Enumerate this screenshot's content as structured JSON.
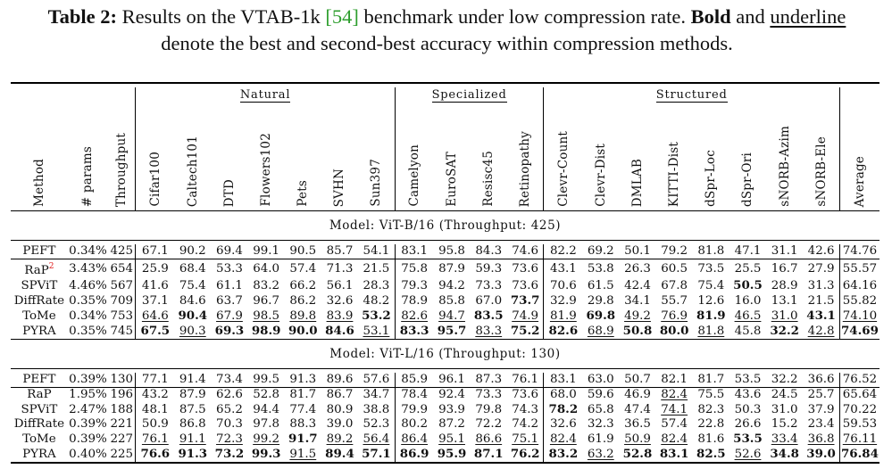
{
  "caption": {
    "label": "Table 2:",
    "text_a": " Results on the VTAB-1k ",
    "ref": "[54]",
    "text_b": " benchmark under low compression rate. ",
    "bold_word": "Bold",
    "text_c": " and ",
    "underline_word": "underline",
    "text_d": " denote the best and second-best accuracy within compression methods."
  },
  "groups": {
    "natural": "Natural",
    "specialized": "Specialized",
    "structured": "Structured"
  },
  "columns": [
    "Method",
    "# params",
    "Throughput",
    "Cifar100",
    "Caltech101",
    "DTD",
    "Flowers102",
    "Pets",
    "SVHN",
    "Sun397",
    "Camelyon",
    "EuroSAT",
    "Resisc45",
    "Retinopathy",
    "Clevr-Count",
    "Clevr-Dist",
    "DMLAB",
    "KITTI-Dist",
    "dSpr-Loc",
    "dSpr-Ori",
    "sNORB-Azim",
    "sNORB-Ele",
    "Average"
  ],
  "sections": [
    {
      "title": "Model: ViT-B/16 (Throughput: 425)",
      "rows": [
        {
          "method": "PEFT",
          "sup": "",
          "cells": [
            "0.34%",
            "425",
            "67.1",
            "90.2",
            "69.4",
            "99.1",
            "90.5",
            "85.7",
            "54.1",
            "83.1",
            "95.8",
            "84.3",
            "74.6",
            "82.2",
            "69.2",
            "50.1",
            "79.2",
            "81.8",
            "47.1",
            "31.1",
            "42.6",
            "74.76"
          ],
          "fmt": []
        },
        {
          "method": "RaP",
          "sup": "2",
          "cells": [
            "3.43%",
            "654",
            "25.9",
            "68.4",
            "53.3",
            "64.0",
            "57.4",
            "71.3",
            "21.5",
            "75.8",
            "87.9",
            "59.3",
            "73.6",
            "43.1",
            "53.8",
            "26.3",
            "60.5",
            "73.5",
            "25.5",
            "16.7",
            "27.9",
            "55.57"
          ],
          "fmt": []
        },
        {
          "method": "SPViT",
          "sup": "",
          "cells": [
            "4.46%",
            "567",
            "41.6",
            "75.4",
            "61.1",
            "83.2",
            "66.2",
            "56.1",
            "28.3",
            "79.3",
            "94.2",
            "73.3",
            "73.6",
            "70.6",
            "61.5",
            "42.4",
            "67.8",
            "75.4",
            "50.5",
            "28.9",
            "31.3",
            "64.16"
          ],
          "fmt": [
            "",
            "",
            "",
            "",
            "",
            "",
            "",
            "",
            "",
            "",
            "",
            "",
            "",
            "",
            "",
            "",
            "",
            "",
            "b",
            "",
            "",
            ""
          ]
        },
        {
          "method": "DiffRate",
          "sup": "",
          "cells": [
            "0.35%",
            "709",
            "37.1",
            "84.6",
            "63.7",
            "96.7",
            "86.2",
            "32.6",
            "48.2",
            "78.9",
            "85.8",
            "67.0",
            "73.7",
            "32.9",
            "29.8",
            "34.1",
            "55.7",
            "12.6",
            "16.0",
            "13.1",
            "21.5",
            "55.82"
          ],
          "fmt": [
            "",
            "",
            "",
            "",
            "",
            "",
            "",
            "",
            "",
            "",
            "",
            "",
            "b",
            "",
            "",
            "",
            "",
            "",
            "",
            "",
            "",
            ""
          ]
        },
        {
          "method": "ToMe",
          "sup": "",
          "cells": [
            "0.34%",
            "753",
            "64.6",
            "90.4",
            "67.9",
            "98.5",
            "89.8",
            "83.9",
            "53.2",
            "82.6",
            "94.7",
            "83.5",
            "74.9",
            "81.9",
            "69.8",
            "49.2",
            "76.9",
            "81.9",
            "46.5",
            "31.0",
            "43.1",
            "74.10"
          ],
          "fmt": [
            "",
            "",
            "u",
            "b",
            "u",
            "u",
            "u",
            "u",
            "b",
            "u",
            "u",
            "b",
            "u",
            "u",
            "b",
            "u",
            "u",
            "b",
            "u",
            "u",
            "b",
            "u"
          ]
        },
        {
          "method": "PYRA",
          "sup": "",
          "cells": [
            "0.35%",
            "745",
            "67.5",
            "90.3",
            "69.3",
            "98.9",
            "90.0",
            "84.6",
            "53.1",
            "83.3",
            "95.7",
            "83.3",
            "75.2",
            "82.6",
            "68.9",
            "50.8",
            "80.0",
            "81.8",
            "45.8",
            "32.2",
            "42.8",
            "74.69"
          ],
          "fmt": [
            "",
            "",
            "b",
            "u",
            "b",
            "b",
            "b",
            "b",
            "u",
            "b",
            "b",
            "u",
            "b",
            "b",
            "u",
            "b",
            "b",
            "u",
            "",
            "b",
            "u",
            "b"
          ]
        }
      ]
    },
    {
      "title": "Model: ViT-L/16 (Throughput: 130)",
      "rows": [
        {
          "method": "PEFT",
          "sup": "",
          "cells": [
            "0.39%",
            "130",
            "77.1",
            "91.4",
            "73.4",
            "99.5",
            "91.3",
            "89.6",
            "57.6",
            "85.9",
            "96.1",
            "87.3",
            "76.1",
            "83.1",
            "63.0",
            "50.7",
            "82.1",
            "81.7",
            "53.5",
            "32.2",
            "36.6",
            "76.52"
          ],
          "fmt": []
        },
        {
          "method": "RaP",
          "sup": "",
          "cells": [
            "1.95%",
            "196",
            "43.2",
            "87.9",
            "62.6",
            "52.8",
            "81.7",
            "86.7",
            "34.7",
            "78.4",
            "92.4",
            "73.3",
            "73.6",
            "68.0",
            "59.6",
            "46.9",
            "82.4",
            "75.5",
            "43.6",
            "24.5",
            "25.7",
            "65.64"
          ],
          "fmt": [
            "",
            "",
            "",
            "",
            "",
            "",
            "",
            "",
            "",
            "",
            "",
            "",
            "",
            "",
            "",
            "",
            "u",
            "",
            "",
            "",
            "",
            ""
          ]
        },
        {
          "method": "SPViT",
          "sup": "",
          "cells": [
            "2.47%",
            "188",
            "48.1",
            "87.5",
            "65.2",
            "94.4",
            "77.4",
            "80.9",
            "38.8",
            "79.9",
            "93.9",
            "79.8",
            "74.3",
            "78.2",
            "65.8",
            "47.4",
            "74.1",
            "82.3",
            "50.3",
            "31.0",
            "37.9",
            "70.22"
          ],
          "fmt": [
            "",
            "",
            "",
            "",
            "",
            "",
            "",
            "",
            "",
            "",
            "",
            "",
            "",
            "b",
            "",
            "",
            "u",
            "",
            "",
            "",
            "",
            ""
          ]
        },
        {
          "method": "DiffRate",
          "sup": "",
          "cells": [
            "0.39%",
            "221",
            "50.9",
            "86.8",
            "70.3",
            "97.8",
            "88.3",
            "39.0",
            "52.3",
            "80.2",
            "87.2",
            "72.2",
            "74.2",
            "32.6",
            "32.3",
            "36.5",
            "57.4",
            "22.8",
            "26.6",
            "15.2",
            "23.4",
            "59.53"
          ],
          "fmt": []
        },
        {
          "method": "ToMe",
          "sup": "",
          "cells": [
            "0.39%",
            "227",
            "76.1",
            "91.1",
            "72.3",
            "99.2",
            "91.7",
            "89.2",
            "56.4",
            "86.4",
            "95.1",
            "86.6",
            "75.1",
            "82.4",
            "61.9",
            "50.9",
            "82.4",
            "81.6",
            "53.5",
            "33.4",
            "36.8",
            "76.11"
          ],
          "fmt": [
            "",
            "",
            "u",
            "u",
            "u",
            "u",
            "b",
            "u",
            "u",
            "u",
            "u",
            "u",
            "u",
            "u",
            "",
            "u",
            "u",
            "",
            "b",
            "u",
            "u",
            "u"
          ]
        },
        {
          "method": "PYRA",
          "sup": "",
          "cells": [
            "0.40%",
            "225",
            "76.6",
            "91.3",
            "73.2",
            "99.3",
            "91.5",
            "89.4",
            "57.1",
            "86.9",
            "95.9",
            "87.1",
            "76.2",
            "83.2",
            "63.2",
            "52.8",
            "83.1",
            "82.5",
            "52.6",
            "34.8",
            "39.0",
            "76.84"
          ],
          "fmt": [
            "",
            "",
            "b",
            "b",
            "b",
            "b",
            "u",
            "b",
            "b",
            "b",
            "b",
            "b",
            "b",
            "b",
            "u",
            "b",
            "b",
            "b",
            "u",
            "b",
            "b",
            "b"
          ]
        }
      ]
    }
  ]
}
